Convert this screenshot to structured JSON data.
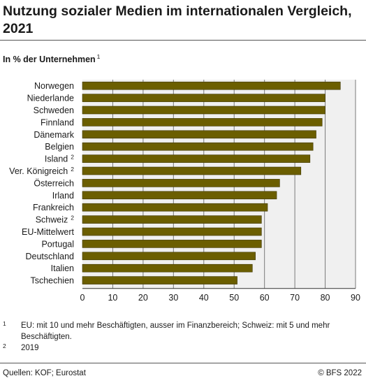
{
  "title": "Nutzung sozialer Medien im internationalen Vergleich, 2021",
  "subtitle": "In % der Unternehmen",
  "subtitle_note": "1",
  "footnotes": [
    {
      "num": "1",
      "text": "EU: mit 10 und mehr Beschäftigten, ausser im Finanzbereich; Schweiz: mit 5 und mehr Beschäftigten."
    },
    {
      "num": "2",
      "text": "2019"
    }
  ],
  "source": "Quellen: KOF; Eurostat",
  "copyright": "© BFS 2022",
  "colors": {
    "bar": "#6b5e00",
    "bar_stroke": "#3e3600",
    "plot_bg": "#f0f0f0",
    "grid": "#7a7a7a"
  },
  "chart_data": {
    "type": "bar",
    "orientation": "horizontal",
    "categories": [
      "Norwegen",
      "Niederlande",
      "Schweden",
      "Finnland",
      "Dänemark",
      "Belgien",
      "Island",
      "Ver. Königreich",
      "Österreich",
      "Irland",
      "Frankreich",
      "Schweiz",
      "EU-Mittelwert",
      "Portugal",
      "Deutschland",
      "Italien",
      "Tschechien"
    ],
    "category_notes": [
      "",
      "",
      "",
      "",
      "",
      "",
      "2",
      "2",
      "",
      "",
      "",
      "2",
      "",
      "",
      "",
      "",
      ""
    ],
    "values": [
      85,
      80,
      80,
      79,
      77,
      76,
      75,
      72,
      65,
      64,
      61,
      59,
      59,
      59,
      57,
      56,
      51
    ],
    "xlim": [
      0,
      90
    ],
    "xticks": [
      0,
      10,
      20,
      30,
      40,
      50,
      60,
      70,
      80,
      90
    ],
    "grid": true
  }
}
